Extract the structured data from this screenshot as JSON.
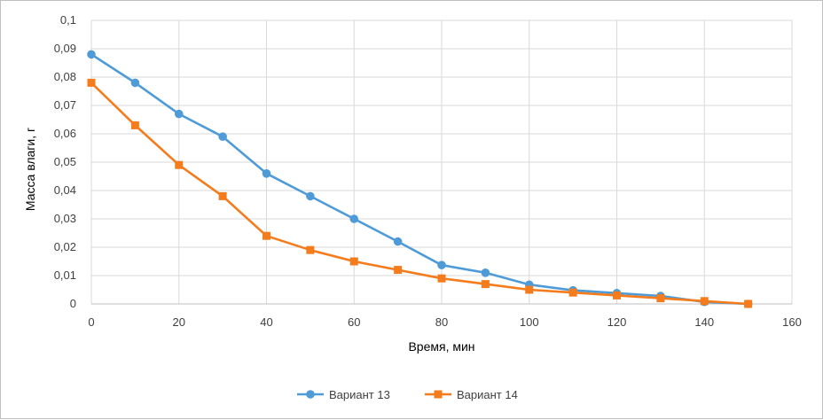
{
  "chart_data": {
    "type": "line",
    "xlabel": "Время, мин",
    "ylabel": "Масса влаги, г",
    "xlim": [
      0,
      160
    ],
    "ylim": [
      0,
      0.1
    ],
    "x_ticks": [
      "0",
      "20",
      "40",
      "60",
      "80",
      "100",
      "120",
      "140",
      "160"
    ],
    "y_ticks": [
      "0",
      "0,01",
      "0,02",
      "0,03",
      "0,04",
      "0,05",
      "0,06",
      "0,07",
      "0,08",
      "0,09",
      "0,1"
    ],
    "grid": true,
    "legend_position": "bottom",
    "x": [
      0,
      10,
      20,
      30,
      40,
      50,
      60,
      70,
      80,
      90,
      100,
      110,
      120,
      130,
      140,
      150
    ],
    "series": [
      {
        "name": "Вариант 13",
        "color": "#4e9bd8",
        "marker": "circle",
        "values": [
          0.088,
          0.078,
          0.067,
          0.059,
          0.046,
          0.038,
          0.03,
          0.022,
          0.0137,
          0.011,
          0.0068,
          0.0048,
          0.0038,
          0.0028,
          0.0007,
          0.0
        ]
      },
      {
        "name": "Вариант 14",
        "color": "#f47c1c",
        "marker": "square",
        "values": [
          0.078,
          0.063,
          0.049,
          0.038,
          0.024,
          0.019,
          0.015,
          0.012,
          0.009,
          0.007,
          0.005,
          0.004,
          0.003,
          0.002,
          0.001,
          0.0
        ]
      }
    ]
  }
}
